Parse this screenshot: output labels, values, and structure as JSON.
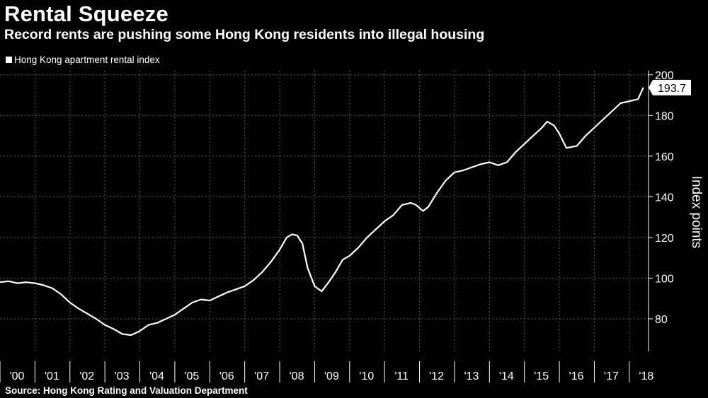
{
  "header": {
    "title": "Rental Squeeze",
    "subtitle": "Record rents are pushing some Hong Kong residents into illegal housing"
  },
  "legend": {
    "label": "Hong Kong apartment rental index"
  },
  "source": "Source: Hong Kong Rating and Valuation Department",
  "colors": {
    "background": "#000000",
    "line": "#ffffff",
    "grid": "#5a5a5a"
  },
  "chart_data": {
    "type": "line",
    "title": "Rental Squeeze",
    "subtitle": "Record rents are pushing some Hong Kong residents into illegal housing",
    "ylabel": "Index points",
    "xlabel": "",
    "ylim": [
      64,
      202
    ],
    "xlim": [
      2000.0,
      2018.55
    ],
    "grid": true,
    "legend_position": "top-left",
    "y_ticks": [
      80,
      100,
      120,
      140,
      160,
      180,
      200
    ],
    "x_ticks": [
      "'00",
      "'01",
      "'02",
      "'03",
      "'04",
      "'05",
      "'06",
      "'07",
      "'08",
      "'09",
      "'10",
      "'11",
      "'12",
      "'13",
      "'14",
      "'15",
      "'16",
      "'17",
      "'18"
    ],
    "last_value_label": "193.7",
    "series": [
      {
        "name": "Hong Kong apartment rental index",
        "x": [
          2000.0,
          2000.25,
          2000.5,
          2000.75,
          2001.0,
          2001.25,
          2001.5,
          2001.75,
          2002.0,
          2002.25,
          2002.5,
          2002.75,
          2003.0,
          2003.25,
          2003.5,
          2003.75,
          2004.0,
          2004.25,
          2004.5,
          2004.75,
          2005.0,
          2005.25,
          2005.5,
          2005.75,
          2006.0,
          2006.25,
          2006.5,
          2006.75,
          2007.0,
          2007.25,
          2007.5,
          2007.75,
          2008.0,
          2008.2,
          2008.35,
          2008.5,
          2008.65,
          2008.8,
          2009.0,
          2009.2,
          2009.4,
          2009.6,
          2009.8,
          2010.0,
          2010.25,
          2010.5,
          2010.75,
          2011.0,
          2011.25,
          2011.5,
          2011.75,
          2011.9,
          2012.1,
          2012.25,
          2012.5,
          2012.75,
          2013.0,
          2013.25,
          2013.5,
          2013.75,
          2014.0,
          2014.25,
          2014.5,
          2014.75,
          2015.0,
          2015.25,
          2015.5,
          2015.65,
          2015.85,
          2016.0,
          2016.2,
          2016.5,
          2016.75,
          2017.0,
          2017.25,
          2017.5,
          2017.75,
          2018.0,
          2018.25,
          2018.4
        ],
        "values": [
          98,
          98.5,
          97.5,
          98,
          97.5,
          96.5,
          95,
          92,
          88,
          85,
          82.5,
          80,
          77,
          75,
          72.5,
          72,
          74,
          77,
          78,
          80,
          82,
          85,
          88,
          89.5,
          89,
          91,
          93,
          94.5,
          96,
          99,
          103,
          108,
          114,
          120,
          121.5,
          121,
          117,
          105,
          96,
          93.5,
          98,
          103,
          109,
          111,
          115,
          120,
          124,
          128,
          131,
          136,
          137,
          136,
          133,
          135,
          142,
          148,
          152,
          153,
          154.5,
          156,
          157,
          155.5,
          157,
          162,
          166,
          170,
          174,
          177,
          175,
          171,
          164,
          165,
          170,
          174,
          178,
          182,
          186,
          187,
          188,
          193.7
        ]
      }
    ]
  }
}
